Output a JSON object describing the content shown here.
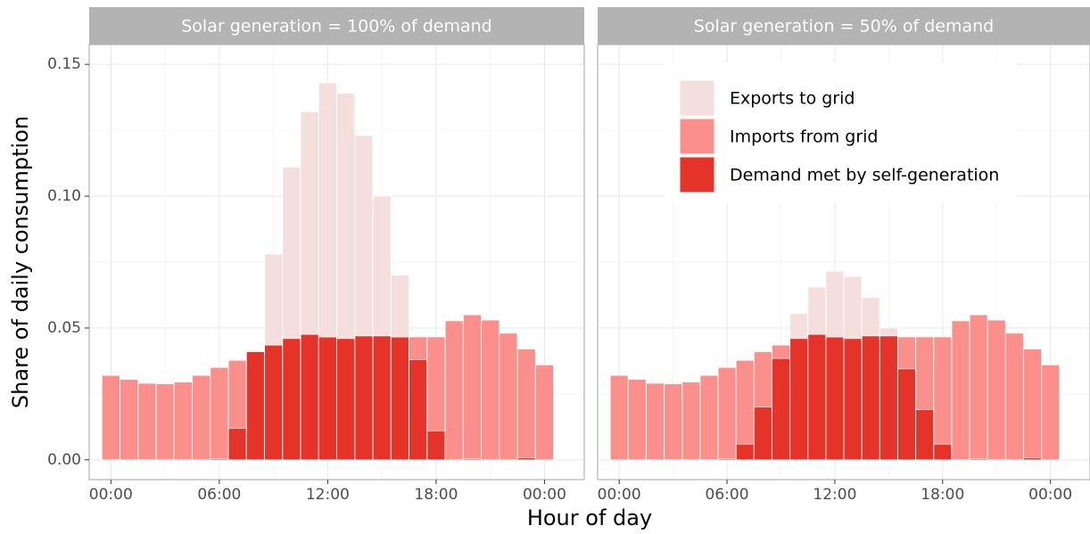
{
  "chart_data": {
    "type": "bar",
    "stacked": true,
    "y_label": "Share of daily consumption",
    "x_label": "Hour of day",
    "x": [
      0,
      1,
      2,
      3,
      4,
      5,
      6,
      7,
      8,
      9,
      10,
      11,
      12,
      13,
      14,
      15,
      16,
      17,
      18,
      19,
      20,
      21,
      22,
      23,
      24
    ],
    "xlim": [
      -1.2,
      26.2
    ],
    "xticks": [
      {
        "value": 0,
        "label": "00:00"
      },
      {
        "value": 6,
        "label": "06:00"
      },
      {
        "value": 12,
        "label": "12:00"
      },
      {
        "value": 18,
        "label": "18:00"
      },
      {
        "value": 24,
        "label": "00:00"
      }
    ],
    "ylim": [
      -0.0075,
      0.1575
    ],
    "yticks": [
      {
        "value": 0,
        "label": "0.00"
      },
      {
        "value": 0.05,
        "label": "0.05"
      },
      {
        "value": 0.1,
        "label": "0.10"
      },
      {
        "value": 0.15,
        "label": "0.15"
      }
    ],
    "grid": true,
    "legend_position": "top-right",
    "series": [
      {
        "name": "Exports to grid",
        "color": "#f4dfdd"
      },
      {
        "name": "Imports from grid",
        "color": "#fb8f8b"
      },
      {
        "name": "Demand met by self-generation",
        "color": "#e5332a"
      }
    ],
    "facets": [
      {
        "title": "Solar generation = 100% of demand",
        "values": [
          [
            0,
            0,
            0,
            0,
            0,
            0,
            0,
            0,
            0,
            0.0345,
            0.065,
            0.0844,
            0.0964,
            0.093,
            0.076,
            0.053,
            0.0234,
            0,
            0,
            0,
            0,
            0,
            0,
            0,
            0
          ],
          [
            0.032,
            0.0305,
            0.029,
            0.0288,
            0.0295,
            0.032,
            0.0345,
            0.0257,
            0,
            0,
            0,
            0,
            0,
            0,
            0,
            0,
            0,
            0.0086,
            0.0356,
            0.0527,
            0.0545,
            0.053,
            0.048,
            0.0412,
            0.036
          ],
          [
            0,
            0,
            0,
            0,
            0,
            0,
            0.0005,
            0.012,
            0.041,
            0.0435,
            0.046,
            0.0476,
            0.0466,
            0.046,
            0.047,
            0.047,
            0.0466,
            0.038,
            0.011,
            0,
            0.0005,
            0,
            0,
            0.0008,
            0
          ]
        ]
      },
      {
        "title": "Solar generation = 50% of demand",
        "values": [
          [
            0,
            0,
            0,
            0,
            0,
            0,
            0,
            0,
            0,
            0,
            0.0095,
            0.0179,
            0.0249,
            0.0235,
            0.0145,
            0.003,
            0,
            0,
            0,
            0,
            0,
            0,
            0,
            0,
            0
          ],
          [
            0.032,
            0.0305,
            0.029,
            0.0288,
            0.0295,
            0.032,
            0.0345,
            0.0317,
            0.021,
            0.005,
            0,
            0,
            0,
            0,
            0,
            0,
            0.0121,
            0.0276,
            0.0406,
            0.0527,
            0.0545,
            0.053,
            0.048,
            0.0412,
            0.036
          ],
          [
            0,
            0,
            0,
            0,
            0,
            0,
            0.0005,
            0.006,
            0.02,
            0.0385,
            0.046,
            0.0476,
            0.0466,
            0.046,
            0.047,
            0.047,
            0.0345,
            0.019,
            0.006,
            0,
            0.0005,
            0,
            0,
            0.0008,
            0
          ]
        ]
      }
    ]
  }
}
